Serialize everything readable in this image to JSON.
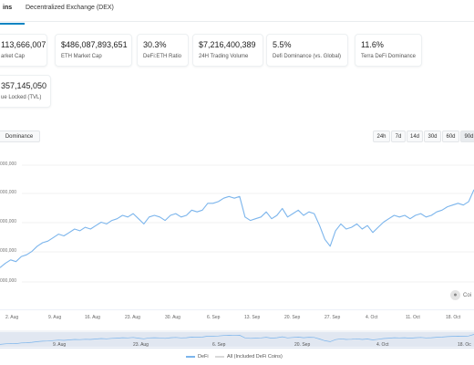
{
  "tabs": [
    {
      "label": "ins",
      "active": true
    },
    {
      "label": "Decentralized Exchange (DEX)",
      "active": false
    }
  ],
  "stats": [
    {
      "value": "113,666,007",
      "label": "arket Cap"
    },
    {
      "value": "$486,087,893,651",
      "label": "ETH Market Cap"
    },
    {
      "value": "30.3%",
      "label": "DeFi:ETH Ratio"
    },
    {
      "value": "$7,216,400,389",
      "label": "24H Trading Volume"
    },
    {
      "value": "5.5%",
      "label": "Defi Dominance (vs. Global)"
    },
    {
      "value": "11.6%",
      "label": "Terra DeFi Dominance"
    },
    {
      "value": "357,145,050",
      "label": "ue Locked (TVL)"
    }
  ],
  "view_buttons": {
    "dominance": "Dominance"
  },
  "range_buttons": [
    "24h",
    "7d",
    "14d",
    "30d",
    "60d",
    "90d"
  ],
  "active_range": "90d",
  "accent_color": "#0784c3",
  "series_color": "#7cb5ec",
  "chart_data": {
    "type": "line",
    "y_tick_labels": [
      "000,000",
      "000,000",
      "000,000",
      "000,000",
      "000,000"
    ],
    "x_tick_labels": [
      "2. Aug",
      "9. Aug",
      "16. Aug",
      "23. Aug",
      "30. Aug",
      "6. Sep",
      "13. Sep",
      "20. Sep",
      "27. Sep",
      "4. Oct",
      "11. Oct",
      "18. Oct"
    ],
    "navigator_labels": [
      "9. Aug",
      "23. Aug",
      "6. Sep",
      "20. Sep",
      "4. Oct",
      "18. Oc"
    ],
    "series": [
      {
        "name": "DeFi",
        "color": "#7cb5ec",
        "values": [
          0.05,
          0.1,
          0.14,
          0.12,
          0.18,
          0.2,
          0.24,
          0.3,
          0.34,
          0.36,
          0.4,
          0.44,
          0.42,
          0.46,
          0.5,
          0.48,
          0.52,
          0.5,
          0.54,
          0.58,
          0.56,
          0.6,
          0.62,
          0.66,
          0.64,
          0.68,
          0.62,
          0.56,
          0.64,
          0.66,
          0.64,
          0.6,
          0.66,
          0.68,
          0.64,
          0.66,
          0.72,
          0.7,
          0.72,
          0.8,
          0.8,
          0.82,
          0.86,
          0.88,
          0.86,
          0.88,
          0.64,
          0.6,
          0.62,
          0.64,
          0.7,
          0.62,
          0.66,
          0.74,
          0.64,
          0.68,
          0.72,
          0.66,
          0.7,
          0.68,
          0.54,
          0.38,
          0.3,
          0.48,
          0.56,
          0.5,
          0.52,
          0.56,
          0.5,
          0.54,
          0.46,
          0.52,
          0.58,
          0.62,
          0.66,
          0.64,
          0.66,
          0.62,
          0.66,
          0.68,
          0.64,
          0.66,
          0.7,
          0.72,
          0.76,
          0.78,
          0.8,
          0.78,
          0.82,
          0.96
        ]
      },
      {
        "name": "All (Included DeFi Coins)",
        "color": "#d9d9d9",
        "values": []
      }
    ]
  }
}
